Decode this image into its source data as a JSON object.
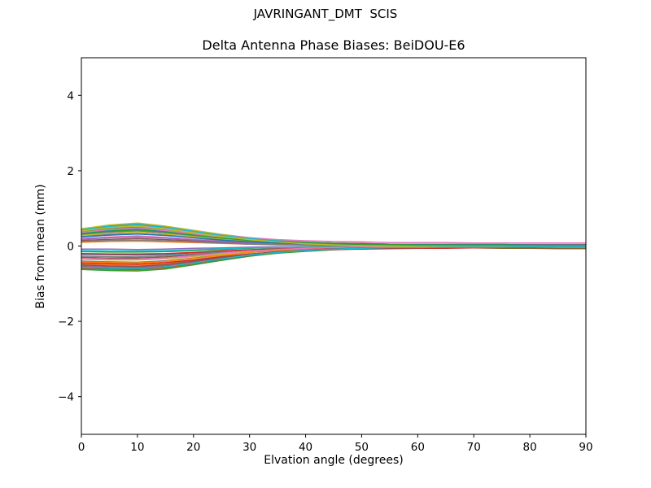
{
  "figure": {
    "background": "#ffffff",
    "text_color": "#000000"
  },
  "chart_data": {
    "type": "line",
    "suptitle": "JAVRINGANT_DMT  SCIS",
    "title": "Delta Antenna Phase Biases: BeiDOU-E6",
    "xlabel": "Elvation angle (degrees)",
    "ylabel": "Bias from mean (mm)",
    "xlim": [
      0,
      90
    ],
    "ylim": [
      -5,
      5
    ],
    "xticks": [
      0,
      10,
      20,
      30,
      40,
      50,
      60,
      70,
      80,
      90
    ],
    "xtick_labels": [
      "0",
      "10",
      "20",
      "30",
      "40",
      "50",
      "60",
      "70",
      "80",
      "90"
    ],
    "yticks": [
      -4,
      -2,
      0,
      2,
      4
    ],
    "ytick_labels": [
      "−4",
      "−2",
      "0",
      "2",
      "4"
    ],
    "grid": false,
    "legend": "none",
    "frame": "full-box",
    "line_width": 1.5,
    "x": [
      0,
      5,
      10,
      15,
      20,
      25,
      30,
      35,
      40,
      45,
      50,
      55,
      60,
      65,
      70,
      75,
      80,
      85,
      90
    ],
    "series": [
      {
        "color": "#1f77b4",
        "values": [
          0.44,
          0.54,
          0.59,
          0.51,
          0.4,
          0.29,
          0.21,
          0.15,
          0.1,
          0.08,
          0.06,
          0.05,
          0.04,
          0.04,
          0.03,
          0.03,
          0.03,
          0.03,
          0.03
        ]
      },
      {
        "color": "#ff7f0e",
        "values": [
          -0.6,
          -0.63,
          -0.64,
          -0.59,
          -0.48,
          -0.36,
          -0.26,
          -0.19,
          -0.13,
          -0.09,
          -0.07,
          -0.06,
          -0.05,
          -0.05,
          -0.04,
          -0.04,
          -0.03,
          -0.03,
          -0.03
        ]
      },
      {
        "color": "#2ca02c",
        "values": [
          0.38,
          0.46,
          0.51,
          0.43,
          0.33,
          0.23,
          0.15,
          0.09,
          0.03,
          0.0,
          -0.02,
          -0.03,
          -0.04,
          -0.05,
          -0.05,
          -0.06,
          -0.06,
          -0.07,
          -0.07
        ]
      },
      {
        "color": "#d62728",
        "values": [
          0.42,
          0.51,
          0.56,
          0.49,
          0.38,
          0.28,
          0.2,
          0.15,
          0.11,
          0.08,
          0.07,
          0.05,
          0.05,
          0.05,
          0.04,
          0.04,
          0.04,
          0.04,
          0.04
        ]
      },
      {
        "color": "#9467bd",
        "values": [
          -0.52,
          -0.55,
          -0.56,
          -0.51,
          -0.41,
          -0.31,
          -0.22,
          -0.15,
          -0.1,
          -0.06,
          -0.04,
          -0.03,
          -0.03,
          -0.02,
          -0.02,
          -0.02,
          -0.01,
          -0.01,
          -0.01
        ]
      },
      {
        "color": "#8c564b",
        "values": [
          -0.3,
          -0.32,
          -0.32,
          -0.29,
          -0.23,
          -0.17,
          -0.11,
          -0.07,
          -0.04,
          -0.02,
          0.0,
          0.01,
          0.01,
          0.01,
          0.02,
          0.02,
          0.02,
          0.02,
          0.02
        ]
      },
      {
        "color": "#e377c2",
        "values": [
          0.2,
          0.24,
          0.27,
          0.23,
          0.18,
          0.14,
          0.1,
          0.08,
          0.06,
          0.05,
          0.04,
          0.04,
          0.03,
          0.03,
          0.03,
          0.03,
          0.03,
          0.03,
          0.03
        ]
      },
      {
        "color": "#7f7f7f",
        "values": [
          -0.4,
          -0.42,
          -0.43,
          -0.39,
          -0.32,
          -0.24,
          -0.17,
          -0.12,
          -0.08,
          -0.06,
          -0.04,
          -0.03,
          -0.03,
          -0.02,
          -0.02,
          -0.02,
          -0.02,
          -0.02,
          -0.02
        ]
      },
      {
        "color": "#bcbd22",
        "values": [
          0.46,
          0.56,
          0.61,
          0.53,
          0.42,
          0.31,
          0.22,
          0.15,
          0.11,
          0.08,
          0.06,
          0.05,
          0.04,
          0.04,
          0.03,
          0.03,
          0.03,
          0.03,
          0.03
        ]
      },
      {
        "color": "#17becf",
        "values": [
          0.35,
          0.43,
          0.47,
          0.4,
          0.31,
          0.22,
          0.15,
          0.1,
          0.06,
          0.04,
          0.02,
          0.01,
          0.01,
          0.0,
          0.0,
          0.0,
          -0.01,
          -0.01,
          -0.01
        ]
      },
      {
        "color": "#1f77b4",
        "values": [
          -0.22,
          -0.23,
          -0.24,
          -0.22,
          -0.18,
          -0.14,
          -0.11,
          -0.09,
          -0.07,
          -0.06,
          -0.05,
          -0.05,
          -0.05,
          -0.04,
          -0.04,
          -0.04,
          -0.04,
          -0.04,
          -0.04
        ]
      },
      {
        "color": "#ff7f0e",
        "values": [
          -0.48,
          -0.5,
          -0.51,
          -0.47,
          -0.39,
          -0.3,
          -0.22,
          -0.16,
          -0.12,
          -0.09,
          -0.07,
          -0.06,
          -0.05,
          -0.05,
          -0.04,
          -0.04,
          -0.04,
          -0.04,
          -0.04
        ]
      },
      {
        "color": "#2ca02c",
        "values": [
          -0.62,
          -0.65,
          -0.66,
          -0.61,
          -0.5,
          -0.38,
          -0.27,
          -0.19,
          -0.14,
          -0.1,
          -0.07,
          -0.06,
          -0.05,
          -0.05,
          -0.04,
          -0.04,
          -0.03,
          -0.03,
          -0.03
        ]
      },
      {
        "color": "#d62728",
        "values": [
          -0.55,
          -0.58,
          -0.59,
          -0.54,
          -0.44,
          -0.33,
          -0.24,
          -0.17,
          -0.12,
          -0.08,
          -0.06,
          -0.04,
          -0.04,
          -0.03,
          -0.03,
          -0.03,
          -0.02,
          -0.02,
          -0.02
        ]
      },
      {
        "color": "#9467bd",
        "values": [
          0.3,
          0.37,
          0.4,
          0.35,
          0.27,
          0.21,
          0.15,
          0.11,
          0.08,
          0.06,
          0.05,
          0.04,
          0.04,
          0.04,
          0.04,
          0.04,
          0.03,
          0.03,
          0.03
        ]
      },
      {
        "color": "#8c564b",
        "values": [
          0.15,
          0.18,
          0.2,
          0.17,
          0.14,
          0.1,
          0.07,
          0.05,
          0.04,
          0.03,
          0.03,
          0.02,
          0.02,
          0.02,
          0.02,
          0.02,
          0.02,
          0.02,
          0.02
        ]
      },
      {
        "color": "#e377c2",
        "values": [
          0.41,
          0.5,
          0.55,
          0.48,
          0.38,
          0.29,
          0.22,
          0.17,
          0.14,
          0.12,
          0.11,
          0.09,
          0.09,
          0.09,
          0.08,
          0.08,
          0.08,
          0.08,
          0.08
        ]
      },
      {
        "color": "#7f7f7f",
        "values": [
          0.25,
          0.31,
          0.33,
          0.29,
          0.22,
          0.16,
          0.11,
          0.07,
          0.05,
          0.03,
          0.02,
          0.01,
          0.01,
          0.01,
          0.0,
          0.0,
          0.0,
          0.0,
          0.0
        ]
      },
      {
        "color": "#bcbd22",
        "values": [
          -0.35,
          -0.37,
          -0.37,
          -0.34,
          -0.28,
          -0.22,
          -0.16,
          -0.12,
          -0.09,
          -0.07,
          -0.06,
          -0.05,
          -0.04,
          -0.04,
          -0.04,
          -0.04,
          -0.03,
          -0.03,
          -0.03
        ]
      },
      {
        "color": "#17becf",
        "values": [
          0.43,
          0.52,
          0.57,
          0.49,
          0.39,
          0.28,
          0.2,
          0.14,
          0.09,
          0.06,
          0.05,
          0.03,
          0.03,
          0.03,
          0.02,
          0.02,
          0.02,
          0.02,
          0.02
        ]
      },
      {
        "color": "#1f77b4",
        "values": [
          0.33,
          0.4,
          0.44,
          0.38,
          0.3,
          0.22,
          0.16,
          0.12,
          0.09,
          0.07,
          0.06,
          0.05,
          0.04,
          0.04,
          0.04,
          0.04,
          0.03,
          0.03,
          0.03
        ]
      },
      {
        "color": "#ff7f0e",
        "values": [
          0.1,
          0.12,
          0.13,
          0.11,
          0.09,
          0.07,
          0.05,
          0.03,
          0.02,
          0.01,
          0.0,
          0.0,
          0.0,
          0.0,
          0.0,
          0.0,
          -0.01,
          -0.01,
          -0.01
        ]
      },
      {
        "color": "#2ca02c",
        "values": [
          -0.15,
          -0.16,
          -0.16,
          -0.15,
          -0.12,
          -0.09,
          -0.06,
          -0.04,
          -0.02,
          -0.01,
          -0.01,
          0.0,
          0.0,
          0.0,
          0.0,
          0.0,
          0.0,
          0.0,
          0.0
        ]
      },
      {
        "color": "#d62728",
        "values": [
          -0.45,
          -0.47,
          -0.48,
          -0.44,
          -0.37,
          -0.28,
          -0.21,
          -0.16,
          -0.12,
          -0.09,
          -0.08,
          -0.07,
          -0.06,
          -0.06,
          -0.05,
          -0.05,
          -0.05,
          -0.05,
          -0.05
        ]
      },
      {
        "color": "#9467bd",
        "values": [
          -0.08,
          -0.08,
          -0.09,
          -0.08,
          -0.06,
          -0.05,
          -0.03,
          -0.02,
          -0.02,
          -0.01,
          -0.01,
          -0.01,
          -0.01,
          0.0,
          0.0,
          0.0,
          0.0,
          0.0,
          0.0
        ]
      },
      {
        "color": "#8c564b",
        "values": [
          -0.58,
          -0.61,
          -0.62,
          -0.57,
          -0.46,
          -0.35,
          -0.25,
          -0.17,
          -0.11,
          -0.07,
          -0.05,
          -0.04,
          -0.03,
          -0.02,
          -0.02,
          -0.02,
          -0.01,
          -0.01,
          -0.01
        ]
      },
      {
        "color": "#e377c2",
        "values": [
          0.36,
          0.44,
          0.48,
          0.41,
          0.32,
          0.23,
          0.16,
          0.1,
          0.06,
          0.04,
          0.02,
          0.01,
          0.01,
          0.0,
          0.0,
          0.0,
          0.0,
          0.0,
          0.0
        ]
      },
      {
        "color": "#7f7f7f",
        "values": [
          -0.27,
          -0.28,
          -0.29,
          -0.26,
          -0.21,
          -0.16,
          -0.1,
          -0.06,
          -0.03,
          -0.01,
          0.0,
          0.01,
          0.01,
          0.01,
          0.02,
          0.02,
          0.02,
          0.02,
          0.02
        ]
      },
      {
        "color": "#bcbd22",
        "values": [
          0.28,
          0.34,
          0.37,
          0.32,
          0.25,
          0.18,
          0.13,
          0.09,
          0.06,
          0.04,
          0.03,
          0.02,
          0.02,
          0.02,
          0.01,
          0.01,
          0.01,
          0.01,
          0.01
        ]
      },
      {
        "color": "#17becf",
        "values": [
          -0.12,
          -0.13,
          -0.13,
          -0.12,
          -0.1,
          -0.07,
          -0.05,
          -0.04,
          -0.03,
          -0.03,
          -0.02,
          -0.02,
          -0.02,
          -0.02,
          -0.02,
          -0.02,
          -0.02,
          -0.02,
          -0.02
        ]
      },
      {
        "color": "#1f77b4",
        "values": [
          0.24,
          0.29,
          0.32,
          0.28,
          0.22,
          0.16,
          0.11,
          0.08,
          0.06,
          0.05,
          0.04,
          0.03,
          0.03,
          0.02,
          0.02,
          0.02,
          0.02,
          0.02,
          0.02
        ]
      },
      {
        "color": "#ff7f0e",
        "values": [
          -0.42,
          -0.44,
          -0.45,
          -0.41,
          -0.33,
          -0.25,
          -0.17,
          -0.11,
          -0.07,
          -0.04,
          -0.02,
          -0.01,
          -0.01,
          -0.01,
          0.0,
          0.0,
          0.0,
          0.0,
          0.0
        ]
      },
      {
        "color": "#2ca02c",
        "values": [
          0.32,
          0.39,
          0.43,
          0.37,
          0.29,
          0.21,
          0.15,
          0.11,
          0.08,
          0.06,
          0.05,
          0.04,
          0.03,
          0.03,
          0.03,
          0.03,
          0.02,
          0.02,
          0.02
        ]
      },
      {
        "color": "#d62728",
        "values": [
          -0.2,
          -0.21,
          -0.21,
          -0.2,
          -0.17,
          -0.13,
          -0.1,
          -0.08,
          -0.06,
          -0.05,
          -0.04,
          -0.04,
          -0.03,
          -0.03,
          -0.03,
          -0.03,
          -0.03,
          -0.03,
          -0.03
        ]
      },
      {
        "color": "#9467bd",
        "values": [
          0.18,
          0.22,
          0.24,
          0.21,
          0.16,
          0.12,
          0.08,
          0.05,
          0.03,
          0.02,
          0.01,
          0.0,
          0.0,
          0.0,
          0.0,
          0.0,
          0.0,
          0.0,
          0.0
        ]
      },
      {
        "color": "#8c564b",
        "values": [
          -0.5,
          -0.53,
          -0.54,
          -0.49,
          -0.4,
          -0.3,
          -0.22,
          -0.15,
          -0.11,
          -0.08,
          -0.06,
          -0.05,
          -0.04,
          -0.04,
          -0.04,
          -0.03,
          -0.03,
          -0.03,
          -0.03
        ]
      },
      {
        "color": "#e377c2",
        "values": [
          -0.33,
          -0.35,
          -0.35,
          -0.32,
          -0.26,
          -0.19,
          -0.13,
          -0.09,
          -0.06,
          -0.04,
          -0.02,
          -0.02,
          -0.01,
          -0.01,
          -0.01,
          -0.01,
          0.0,
          0.0,
          0.0
        ]
      },
      {
        "color": "#7f7f7f",
        "values": [
          0.12,
          0.15,
          0.16,
          0.14,
          0.11,
          0.08,
          0.05,
          0.04,
          0.03,
          0.02,
          0.01,
          0.01,
          0.01,
          0.01,
          0.01,
          0.01,
          0.0,
          0.0,
          0.0
        ]
      },
      {
        "color": "#bcbd22",
        "values": [
          0.4,
          0.49,
          0.53,
          0.45,
          0.35,
          0.25,
          0.17,
          0.11,
          0.06,
          0.03,
          0.01,
          0.0,
          -0.01,
          -0.01,
          -0.02,
          -0.02,
          -0.02,
          -0.03,
          -0.03
        ]
      },
      {
        "color": "#17becf",
        "values": [
          -0.56,
          -0.59,
          -0.6,
          -0.55,
          -0.45,
          -0.34,
          -0.24,
          -0.17,
          -0.12,
          -0.08,
          -0.06,
          -0.04,
          -0.04,
          -0.03,
          -0.03,
          -0.03,
          -0.02,
          -0.02,
          -0.02
        ]
      }
    ]
  }
}
